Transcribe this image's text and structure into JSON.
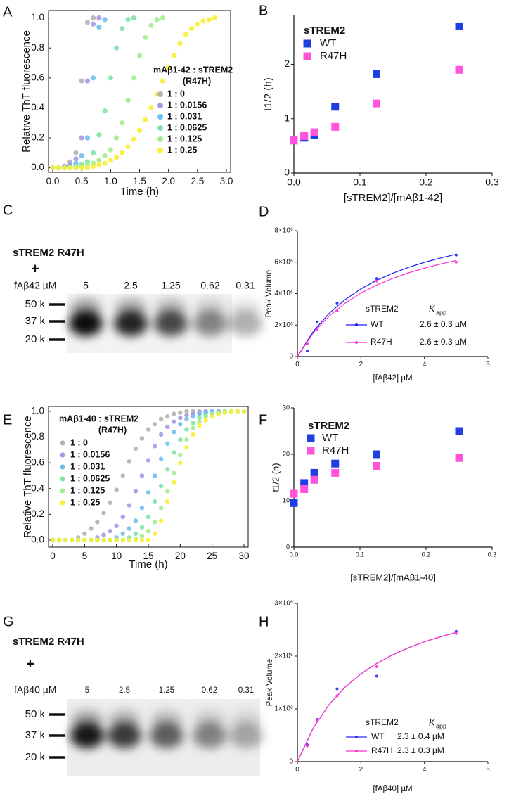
{
  "chart_data": [
    {
      "panel": "A",
      "type": "scatter",
      "x_label": "Time (h)",
      "y_label": "Relative ThT fluorescence",
      "xlim": [
        0,
        3
      ],
      "ylim": [
        -0.03,
        1.05
      ],
      "xticks": [
        {
          "value": 0,
          "label": "0.0"
        },
        0.5,
        {
          "value": 1,
          "label": "1.0"
        },
        1.5,
        {
          "value": 2,
          "label": "2.0"
        },
        2.5,
        {
          "value": 3,
          "label": "3.0"
        }
      ],
      "yticks": [
        {
          "value": 0,
          "label": "0.0"
        },
        0.2,
        0.4,
        0.6,
        0.8,
        {
          "value": 1,
          "label": "1.0"
        }
      ],
      "legend_title": "mAβ1-42 : sTREM2",
      "legend_subtitle": "(R47H)",
      "x": [
        0,
        0.1,
        0.2,
        0.3,
        0.4,
        0.5,
        0.6,
        0.7,
        0.8,
        0.9,
        1,
        1.1,
        1.2,
        1.3,
        1.4,
        1.5,
        1.6,
        1.7,
        1.8,
        1.9,
        2,
        2.1,
        2.2,
        2.3,
        2.4,
        2.5,
        2.6,
        2.7,
        2.8
      ],
      "series": [
        {
          "name": "1 : 0",
          "color": "#b3b3b3",
          "values": [
            0,
            0,
            0.01,
            0.04,
            0.1,
            0.58,
            0.97,
            1,
            null,
            null,
            null,
            null,
            null,
            null,
            null,
            null,
            null,
            null,
            null,
            null,
            null,
            null,
            null,
            null,
            null,
            null,
            null,
            null,
            null
          ]
        },
        {
          "name": "1 : 0.0156",
          "color": "#a898e8",
          "values": [
            0,
            0,
            0.01,
            0.02,
            0.06,
            0.2,
            0.58,
            0.96,
            1,
            null,
            null,
            null,
            null,
            null,
            null,
            null,
            null,
            null,
            null,
            null,
            null,
            null,
            null,
            null,
            null,
            null,
            null,
            null,
            null
          ]
        },
        {
          "name": "1 : 0.031",
          "color": "#6cc0f0",
          "values": [
            0,
            0,
            0,
            0.01,
            0.03,
            0.08,
            0.2,
            0.6,
            0.94,
            0.99,
            null,
            null,
            null,
            null,
            null,
            null,
            null,
            null,
            null,
            null,
            null,
            null,
            null,
            null,
            null,
            null,
            null,
            null,
            null
          ]
        },
        {
          "name": "1 : 0.0625",
          "color": "#7fe3a6",
          "values": [
            0,
            0,
            0,
            0,
            0.01,
            0.02,
            0.04,
            0.1,
            0.22,
            0.38,
            0.6,
            0.8,
            0.93,
            0.99,
            1,
            null,
            null,
            null,
            null,
            null,
            null,
            null,
            null,
            null,
            null,
            null,
            null,
            null,
            null
          ]
        },
        {
          "name": "1 : 0.125",
          "color": "#a3ec8e",
          "values": [
            0,
            0,
            0,
            0,
            0,
            0.01,
            0.02,
            0.03,
            0.05,
            0.08,
            0.12,
            0.2,
            0.3,
            0.45,
            0.6,
            0.75,
            0.87,
            0.95,
            0.99,
            1,
            null,
            null,
            null,
            null,
            null,
            null,
            null,
            null,
            null
          ]
        },
        {
          "name": "1 : 0.25",
          "color": "#f7ef3a",
          "values": [
            0,
            0,
            0,
            0,
            0,
            0,
            0,
            0.01,
            0.02,
            0.03,
            0.05,
            0.07,
            0.1,
            0.14,
            0.19,
            0.25,
            0.32,
            0.4,
            0.49,
            0.58,
            0.67,
            0.75,
            0.83,
            0.89,
            0.93,
            0.96,
            0.98,
            0.99,
            1
          ]
        }
      ]
    },
    {
      "panel": "B",
      "type": "scatter",
      "x_label": "[sTREM2]/[mAβ1-42]",
      "y_label": "t1/2 (h)",
      "xlim": [
        0,
        0.3
      ],
      "ylim": [
        0,
        2.9
      ],
      "xticks": [
        {
          "value": 0,
          "label": "0.0"
        },
        0.1,
        0.2,
        0.3
      ],
      "yticks": [
        0,
        1,
        2
      ],
      "legend_title": "sTREM2",
      "x": [
        0,
        0.0156,
        0.031,
        0.0625,
        0.125,
        0.25
      ],
      "series": [
        {
          "name": "WT",
          "color": "#1f3fe0",
          "values": [
            0.6,
            0.65,
            0.7,
            1.22,
            1.82,
            2.7
          ]
        },
        {
          "name": "R47H",
          "color": "#ff55dd",
          "values": [
            0.6,
            0.68,
            0.75,
            0.85,
            1.28,
            1.9
          ]
        }
      ]
    },
    {
      "panel": "D",
      "type": "scatter",
      "x_label": "[fAβ42] µM",
      "y_label": "Peak Volume",
      "xlim": [
        0,
        6
      ],
      "ylim": [
        0,
        8000000
      ],
      "xticks": [
        0,
        2,
        4,
        6
      ],
      "yticks": [
        0,
        {
          "value": 2000000,
          "label": "2×10⁶"
        },
        {
          "value": 4000000,
          "label": "4×10⁶"
        },
        {
          "value": 6000000,
          "label": "6×10⁶"
        },
        {
          "value": 8000000,
          "label": "8×10⁶"
        }
      ],
      "legend_title": "sTREM2",
      "k_label": "K",
      "k_sub": "app",
      "x": [
        0.31,
        0.62,
        1.25,
        2.5,
        5
      ],
      "fit_x": [
        0,
        0.5,
        1,
        1.5,
        2,
        2.5,
        3,
        3.5,
        4,
        4.5,
        5
      ],
      "series": [
        {
          "name": "WT",
          "color": "#1a1aff",
          "kapp": "2.6 ± 0.3 µM",
          "values": [
            350000,
            2200000,
            3400000,
            4950000,
            6450000
          ],
          "fit": [
            0,
            1594000,
            2744000,
            3615000,
            4296000,
            4843000,
            5293000,
            5669000,
            5988000,
            6262000,
            6500000
          ]
        },
        {
          "name": "R47H",
          "color": "#ff33cc",
          "kapp": "2.6 ± 0.3 µM",
          "values": [
            800000,
            1700000,
            2900000,
            4800000,
            6000000
          ],
          "fit": [
            0,
            1495000,
            2575000,
            3391000,
            4030000,
            4544000,
            4966000,
            5319000,
            5618000,
            5875000,
            6099000
          ]
        }
      ]
    },
    {
      "panel": "E",
      "type": "scatter",
      "x_label": "Time (h)",
      "y_label": "Relative ThT fluorescence",
      "xlim": [
        0,
        30
      ],
      "ylim": [
        -0.055,
        1.038
      ],
      "xticks": [
        0,
        5,
        10,
        15,
        20,
        25,
        30
      ],
      "yticks": [
        {
          "value": 0,
          "label": "0.0"
        },
        0.2,
        0.4,
        0.6,
        0.8,
        {
          "value": 1,
          "label": "1.0"
        }
      ],
      "legend_title": "mAβ1-40 : sTREM2",
      "legend_subtitle": "(R47H)",
      "x": [
        0,
        1,
        2,
        3,
        4,
        5,
        6,
        7,
        8,
        9,
        10,
        11,
        12,
        13,
        14,
        15,
        16,
        17,
        18,
        19,
        20,
        21,
        22,
        23,
        24,
        25,
        26,
        27,
        28,
        29,
        30
      ],
      "series": [
        {
          "name": "1 : 0",
          "color": "#b3b3b3",
          "values": [
            0,
            0,
            0,
            0,
            0.02,
            0.05,
            0.09,
            0.14,
            0.21,
            0.29,
            0.39,
            0.5,
            0.61,
            0.71,
            0.79,
            0.86,
            0.9,
            0.94,
            0.96,
            0.98,
            0.99,
            1,
            1,
            1,
            1,
            1,
            1,
            1,
            1,
            1,
            1
          ]
        },
        {
          "name": "1 : 0.0156",
          "color": "#a898e8",
          "values": [
            0,
            0,
            0,
            0,
            0,
            0,
            0,
            0.02,
            0.04,
            0.07,
            0.11,
            0.18,
            0.27,
            0.38,
            0.5,
            0.62,
            0.73,
            0.82,
            0.88,
            0.92,
            0.95,
            0.97,
            0.98,
            0.99,
            1,
            1,
            1,
            1,
            1,
            1,
            1
          ]
        },
        {
          "name": "1 : 0.031",
          "color": "#6cc0f0",
          "values": [
            0,
            0,
            0,
            0,
            0,
            0,
            0,
            0,
            0,
            0,
            0.02,
            0.05,
            0.09,
            0.15,
            0.25,
            0.37,
            0.5,
            0.63,
            0.75,
            0.84,
            0.9,
            0.94,
            0.96,
            0.98,
            0.99,
            1,
            1,
            1,
            1,
            1,
            1
          ]
        },
        {
          "name": "1 : 0.0625",
          "color": "#7fe3a6",
          "values": [
            0,
            0,
            0,
            0,
            0,
            0,
            0,
            0,
            0,
            0,
            0,
            0,
            0.02,
            0.05,
            0.1,
            0.18,
            0.3,
            0.42,
            0.55,
            0.68,
            0.78,
            0.86,
            0.91,
            0.95,
            0.97,
            0.98,
            0.99,
            1,
            1,
            1,
            1
          ]
        },
        {
          "name": "1 : 0.125",
          "color": "#a3ec8e",
          "values": [
            0,
            0,
            0,
            0,
            0,
            0,
            0,
            0,
            0,
            0,
            0,
            0,
            0,
            0.01,
            0.03,
            0.07,
            0.14,
            0.25,
            0.38,
            0.52,
            0.66,
            0.78,
            0.87,
            0.92,
            0.96,
            0.98,
            0.99,
            1,
            1,
            1,
            1
          ]
        },
        {
          "name": "1 : 0.25",
          "color": "#f7ef3a",
          "values": [
            0,
            0,
            0,
            0,
            0,
            0,
            0,
            0,
            0,
            0,
            0,
            0,
            0,
            0,
            0,
            0,
            0.05,
            0.15,
            0.3,
            0.45,
            0.6,
            0.72,
            0.82,
            0.89,
            0.93,
            0.96,
            0.98,
            0.99,
            1,
            1,
            1
          ]
        }
      ]
    },
    {
      "panel": "F",
      "type": "scatter",
      "x_label": "[sTREM2]/[mAβ1-40]",
      "y_label": "t1/2 (h)",
      "xlim": [
        0,
        0.3
      ],
      "ylim": [
        0,
        30
      ],
      "xticks": [
        {
          "value": 0,
          "label": "0.0"
        },
        0.1,
        0.2,
        0.3
      ],
      "yticks": [
        0,
        10,
        20,
        30
      ],
      "legend_title": "sTREM2",
      "x": [
        0,
        0.0156,
        0.031,
        0.0625,
        0.125,
        0.25
      ],
      "series": [
        {
          "name": "WT",
          "color": "#1f3fe0",
          "values": [
            9.5,
            13.8,
            16,
            18,
            20,
            25
          ]
        },
        {
          "name": "R47H",
          "color": "#ff55dd",
          "values": [
            11.5,
            12.5,
            14.5,
            16,
            17.5,
            19.2
          ]
        }
      ]
    },
    {
      "panel": "H",
      "type": "scatter",
      "x_label": "[fAβ40] µM",
      "y_label": "Peak Volume",
      "xlim": [
        0,
        6
      ],
      "ylim": [
        0,
        3000000
      ],
      "xticks": [
        0,
        2,
        4,
        6
      ],
      "yticks": [
        0,
        {
          "value": 1000000,
          "label": "1×10⁶"
        },
        {
          "value": 2000000,
          "label": "2×10⁶"
        },
        {
          "value": 3000000,
          "label": "3×10⁶"
        }
      ],
      "legend_title": "sTREM2",
      "k_label": "K",
      "k_sub": "app",
      "x": [
        0.31,
        0.62,
        1.25,
        2.5,
        5
      ],
      "fit_x": [
        0,
        0.5,
        1,
        1.5,
        2,
        2.5,
        3,
        3.5,
        4,
        4.5,
        5
      ],
      "series": [
        {
          "name": "WT",
          "color": "#2a2aff",
          "kapp": "2.3 ± 0.4 µM",
          "values": [
            320000,
            800000,
            1380000,
            1620000,
            2470000
          ],
          "fit": [
            0,
            639000,
            1084000,
            1412000,
            1664000,
            1863000,
            2024000,
            2158000,
            2272000,
            2366000,
            2448000
          ]
        },
        {
          "name": "R47H",
          "color": "#ff33cc",
          "kapp": "2.3 ± 0.3 µM",
          "values": [
            300000,
            780000,
            1250000,
            1800000,
            2430000
          ],
          "fit": [
            0,
            639000,
            1084000,
            1412000,
            1664000,
            1863000,
            2024000,
            2158000,
            2272000,
            2366000,
            2448000
          ]
        }
      ]
    }
  ],
  "gels": [
    {
      "panel": "C",
      "title": "sTREM2 R47H",
      "plus": "+",
      "unit_label": "fAβ42 µM",
      "lanes": [
        "5",
        "2.5",
        "1.25",
        "0.62",
        "0.31"
      ],
      "markers": [
        "50 k",
        "37 k",
        "20 k"
      ]
    },
    {
      "panel": "G",
      "title": "sTREM2 R47H",
      "plus": "+",
      "unit_label": "fAβ40 µM",
      "lanes": [
        "5",
        "2.5",
        "1.25",
        "0.62",
        "0.31"
      ],
      "markers": [
        "50 k",
        "37 k",
        "20 k"
      ]
    }
  ]
}
